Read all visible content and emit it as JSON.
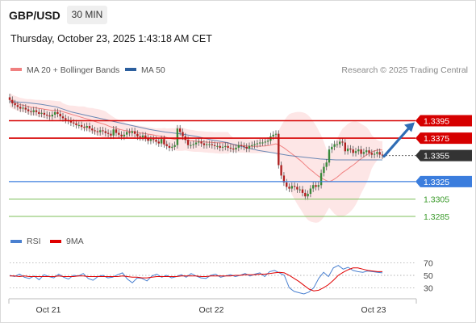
{
  "header": {
    "symbol": "GBP/USD",
    "timeframe": "30 MIN",
    "datetime": "Thursday, October 23, 2025 1:43:18 AM CET"
  },
  "colors": {
    "resistance": "#d60000",
    "current": "#333333",
    "pivot": "#3b7ddd",
    "support": "#7cbf5a",
    "arrow": "#2f6db5",
    "ma20": "#f08080",
    "ma50": "#2c5f9e",
    "bands": "#fde3e3",
    "candle_up": "#3a8a3a",
    "candle_down": "#b02020",
    "rsi": "#4a80d0",
    "rsi_ma": "#e00000"
  },
  "chart_data": [
    {
      "type": "candlestick",
      "title": "",
      "legend": [
        {
          "label": "MA 20 + Bollinger Bands",
          "color": "#f08080"
        },
        {
          "label": "MA 50",
          "color": "#2c5f9e"
        }
      ],
      "source_text": "Research © 2025 Trading Central",
      "legend_position": "top",
      "x_tick_labels": [
        "Oct 21",
        "Oct 22",
        "Oct 23"
      ],
      "ylim": [
        1.3272,
        1.3441
      ],
      "levels": [
        {
          "label": "1.3395",
          "value": 1.3395,
          "kind": "resistance"
        },
        {
          "label": "1.3375",
          "value": 1.3375,
          "kind": "resistance"
        },
        {
          "label": "1.3355",
          "value": 1.3355,
          "kind": "current"
        },
        {
          "label": "1.3325",
          "value": 1.3325,
          "kind": "pivot"
        },
        {
          "label": "1.3305",
          "value": 1.3305,
          "kind": "support"
        },
        {
          "label": "1.3285",
          "value": 1.3285,
          "kind": "support"
        }
      ],
      "close_series": [
        1.3419,
        1.3415,
        1.3413,
        1.3411,
        1.3409,
        1.341,
        1.3408,
        1.3406,
        1.3405,
        1.3407,
        1.3405,
        1.3403,
        1.3404,
        1.3402,
        1.3401,
        1.34,
        1.3402,
        1.3405,
        1.3403,
        1.34,
        1.3398,
        1.3396,
        1.3395,
        1.3393,
        1.3392,
        1.339,
        1.339,
        1.3388,
        1.3387,
        1.3389,
        1.3386,
        1.3384,
        1.3383,
        1.3382,
        1.3384,
        1.3383,
        1.3381,
        1.338,
        1.3378,
        1.3385,
        1.3381,
        1.3379,
        1.3377,
        1.3379,
        1.3382,
        1.3381,
        1.3383,
        1.338,
        1.3377,
        1.3376,
        1.3378,
        1.3375,
        1.3372,
        1.3374,
        1.3373,
        1.3371,
        1.3369,
        1.3374,
        1.3368,
        1.3366,
        1.3364,
        1.3365,
        1.3367,
        1.3386,
        1.3382,
        1.3377,
        1.3373,
        1.3367,
        1.3367,
        1.3368,
        1.337,
        1.3371,
        1.3369,
        1.3367,
        1.3368,
        1.3368,
        1.3367,
        1.3366,
        1.3366,
        1.3364,
        1.3365,
        1.3366,
        1.3364,
        1.3363,
        1.3362,
        1.3364,
        1.3367,
        1.3366,
        1.3365,
        1.3363,
        1.3366,
        1.3367,
        1.3368,
        1.3369,
        1.337,
        1.337,
        1.3371,
        1.3372,
        1.3377,
        1.3379,
        1.338,
        1.3344,
        1.3332,
        1.3324,
        1.3319,
        1.3317,
        1.332,
        1.3319,
        1.3316,
        1.3316,
        1.3312,
        1.3308,
        1.3311,
        1.3317,
        1.3321,
        1.3319,
        1.3321,
        1.3335,
        1.3342,
        1.3347,
        1.3362,
        1.3365,
        1.3368,
        1.3368,
        1.3371,
        1.337,
        1.336,
        1.3363,
        1.3362,
        1.3358,
        1.336,
        1.3362,
        1.3357,
        1.3359,
        1.3361,
        1.3358,
        1.3356,
        1.3357,
        1.3359,
        1.3356,
        1.3355
      ],
      "ma50_series": [
        1.3417,
        1.3416,
        1.3414,
        1.3411,
        1.3405,
        1.3401,
        1.3397,
        1.3393,
        1.3389,
        1.3385,
        1.3382,
        1.338,
        1.3377,
        1.3373,
        1.337,
        1.3365,
        1.3361,
        1.3358,
        1.3355,
        1.3353,
        1.3351,
        1.335,
        1.335,
        1.335,
        1.335
      ]
    },
    {
      "type": "line",
      "title": "",
      "legend": [
        {
          "label": "RSI",
          "color": "#4a80d0"
        },
        {
          "label": "9MA",
          "color": "#e00000"
        }
      ],
      "ylim": [
        20,
        80
      ],
      "y_ticks": [
        "70",
        "50",
        "30"
      ],
      "rsi_series": [
        50,
        48,
        52,
        47,
        45,
        49,
        43,
        51,
        48,
        46,
        52,
        47,
        44,
        50,
        49,
        53,
        45,
        42,
        48,
        50,
        46,
        47,
        51,
        54,
        44,
        38,
        46,
        45,
        41,
        49,
        52,
        47,
        50,
        46,
        48,
        51,
        47,
        53,
        49,
        46,
        45,
        50,
        52,
        47,
        49,
        51,
        48,
        50,
        53,
        49,
        52,
        54,
        48,
        56,
        58,
        54,
        50,
        30,
        24,
        22,
        20,
        23,
        30,
        45,
        55,
        48,
        62,
        66,
        60,
        63,
        58,
        56,
        55,
        57,
        56,
        55,
        54
      ],
      "ma9_series": [
        49,
        49,
        48,
        49,
        48,
        48,
        48,
        48,
        48,
        48,
        49,
        48,
        48,
        48,
        49,
        49,
        48,
        48,
        48,
        48,
        48,
        48,
        48,
        49,
        48,
        47,
        47,
        46,
        46,
        47,
        48,
        48,
        48,
        48,
        48,
        49,
        49,
        49,
        49,
        48,
        48,
        49,
        49,
        49,
        49,
        49,
        50,
        50,
        51,
        51,
        51,
        52,
        52,
        53,
        54,
        55,
        54,
        50,
        45,
        40,
        34,
        28,
        25,
        26,
        30,
        35,
        42,
        50,
        55,
        59,
        62,
        62,
        60,
        58,
        57,
        56,
        56
      ]
    }
  ]
}
